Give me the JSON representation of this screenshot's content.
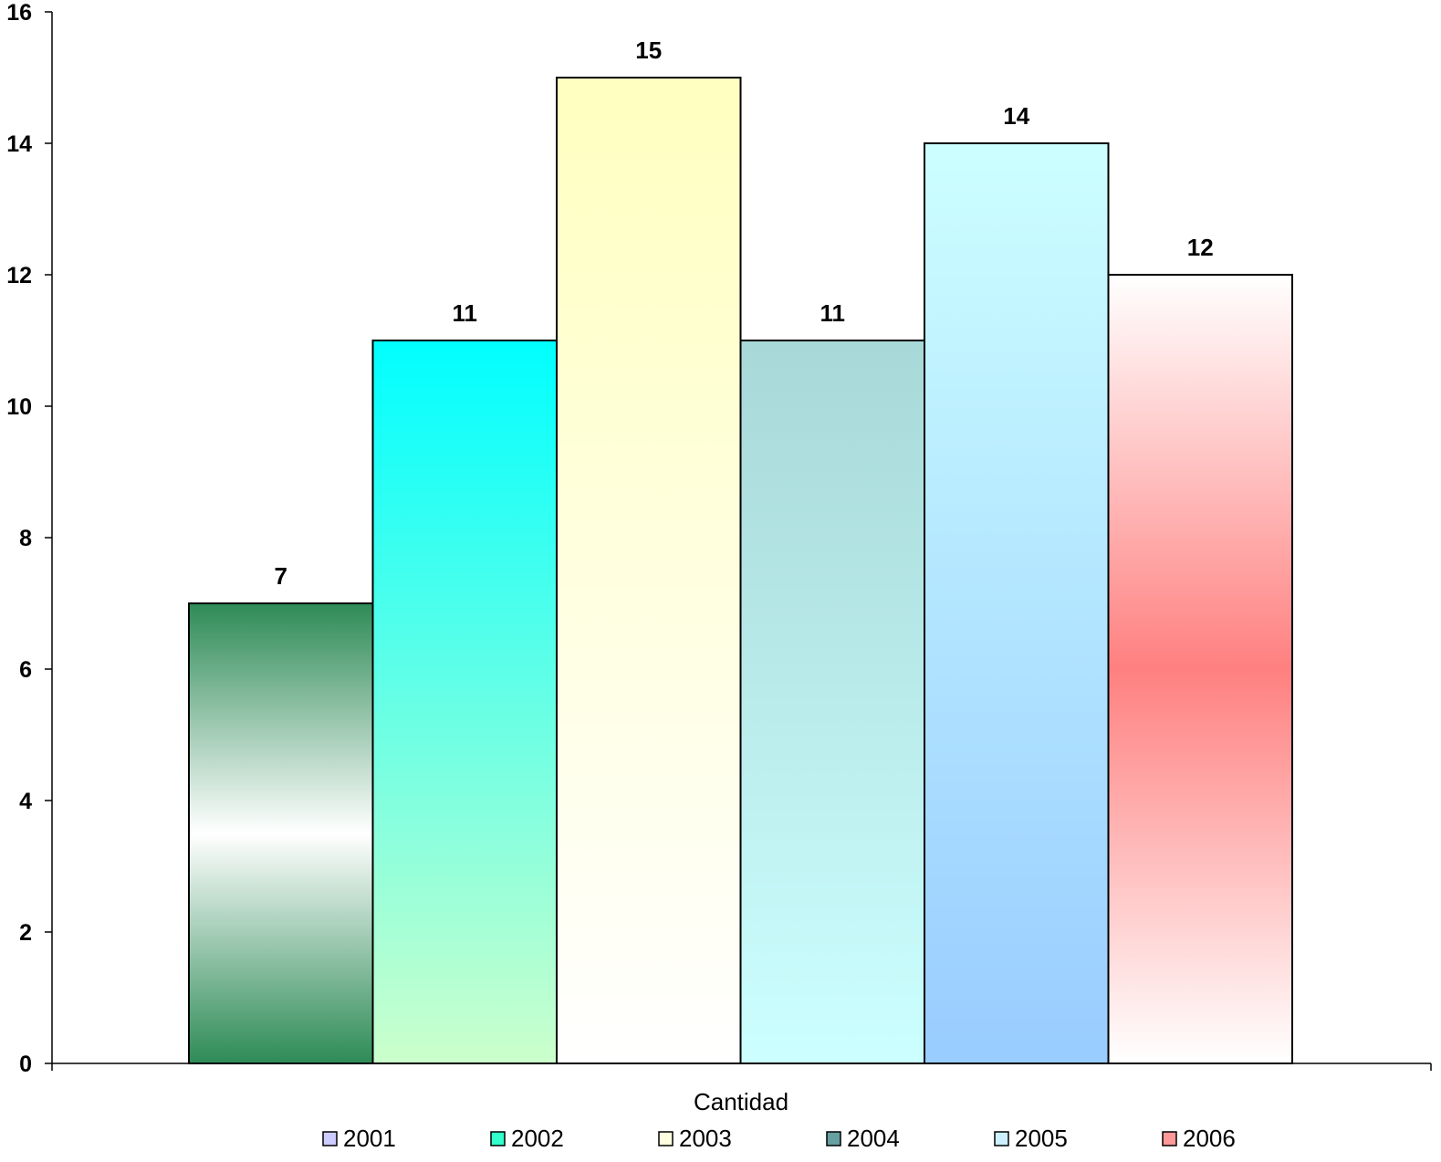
{
  "chart_data": {
    "type": "bar",
    "xlabel": "Cantidad",
    "ylabel": "",
    "ylim": [
      0,
      16
    ],
    "yticks": [
      0,
      2,
      4,
      6,
      8,
      10,
      12,
      14,
      16
    ],
    "grid": false,
    "legend_position": "bottom",
    "series": [
      {
        "name": "2001",
        "value": 7,
        "label": "7",
        "colors": [
          "#2e8b57",
          "#ffffff",
          "#2e8b57"
        ],
        "legend_color": "#ccccff"
      },
      {
        "name": "2002",
        "value": 11,
        "label": "11",
        "colors": [
          "#00ffff",
          "#ccffcc"
        ],
        "legend_color": "#33ffcc"
      },
      {
        "name": "2003",
        "value": 15,
        "label": "15",
        "colors": [
          "#ffffc0",
          "#ffffff"
        ],
        "legend_color": "#ffffe0"
      },
      {
        "name": "2004",
        "value": 11,
        "label": "11",
        "colors": [
          "#a8d8d8",
          "#ccffff"
        ],
        "legend_color": "#66a0a0"
      },
      {
        "name": "2005",
        "value": 14,
        "label": "14",
        "colors": [
          "#ccffff",
          "#99ccff"
        ],
        "legend_color": "#ccf0ff"
      },
      {
        "name": "2006",
        "value": 12,
        "label": "12",
        "colors": [
          "#ffffff",
          "#ff8080",
          "#ffffff"
        ],
        "legend_color": "#ff9999"
      }
    ]
  }
}
